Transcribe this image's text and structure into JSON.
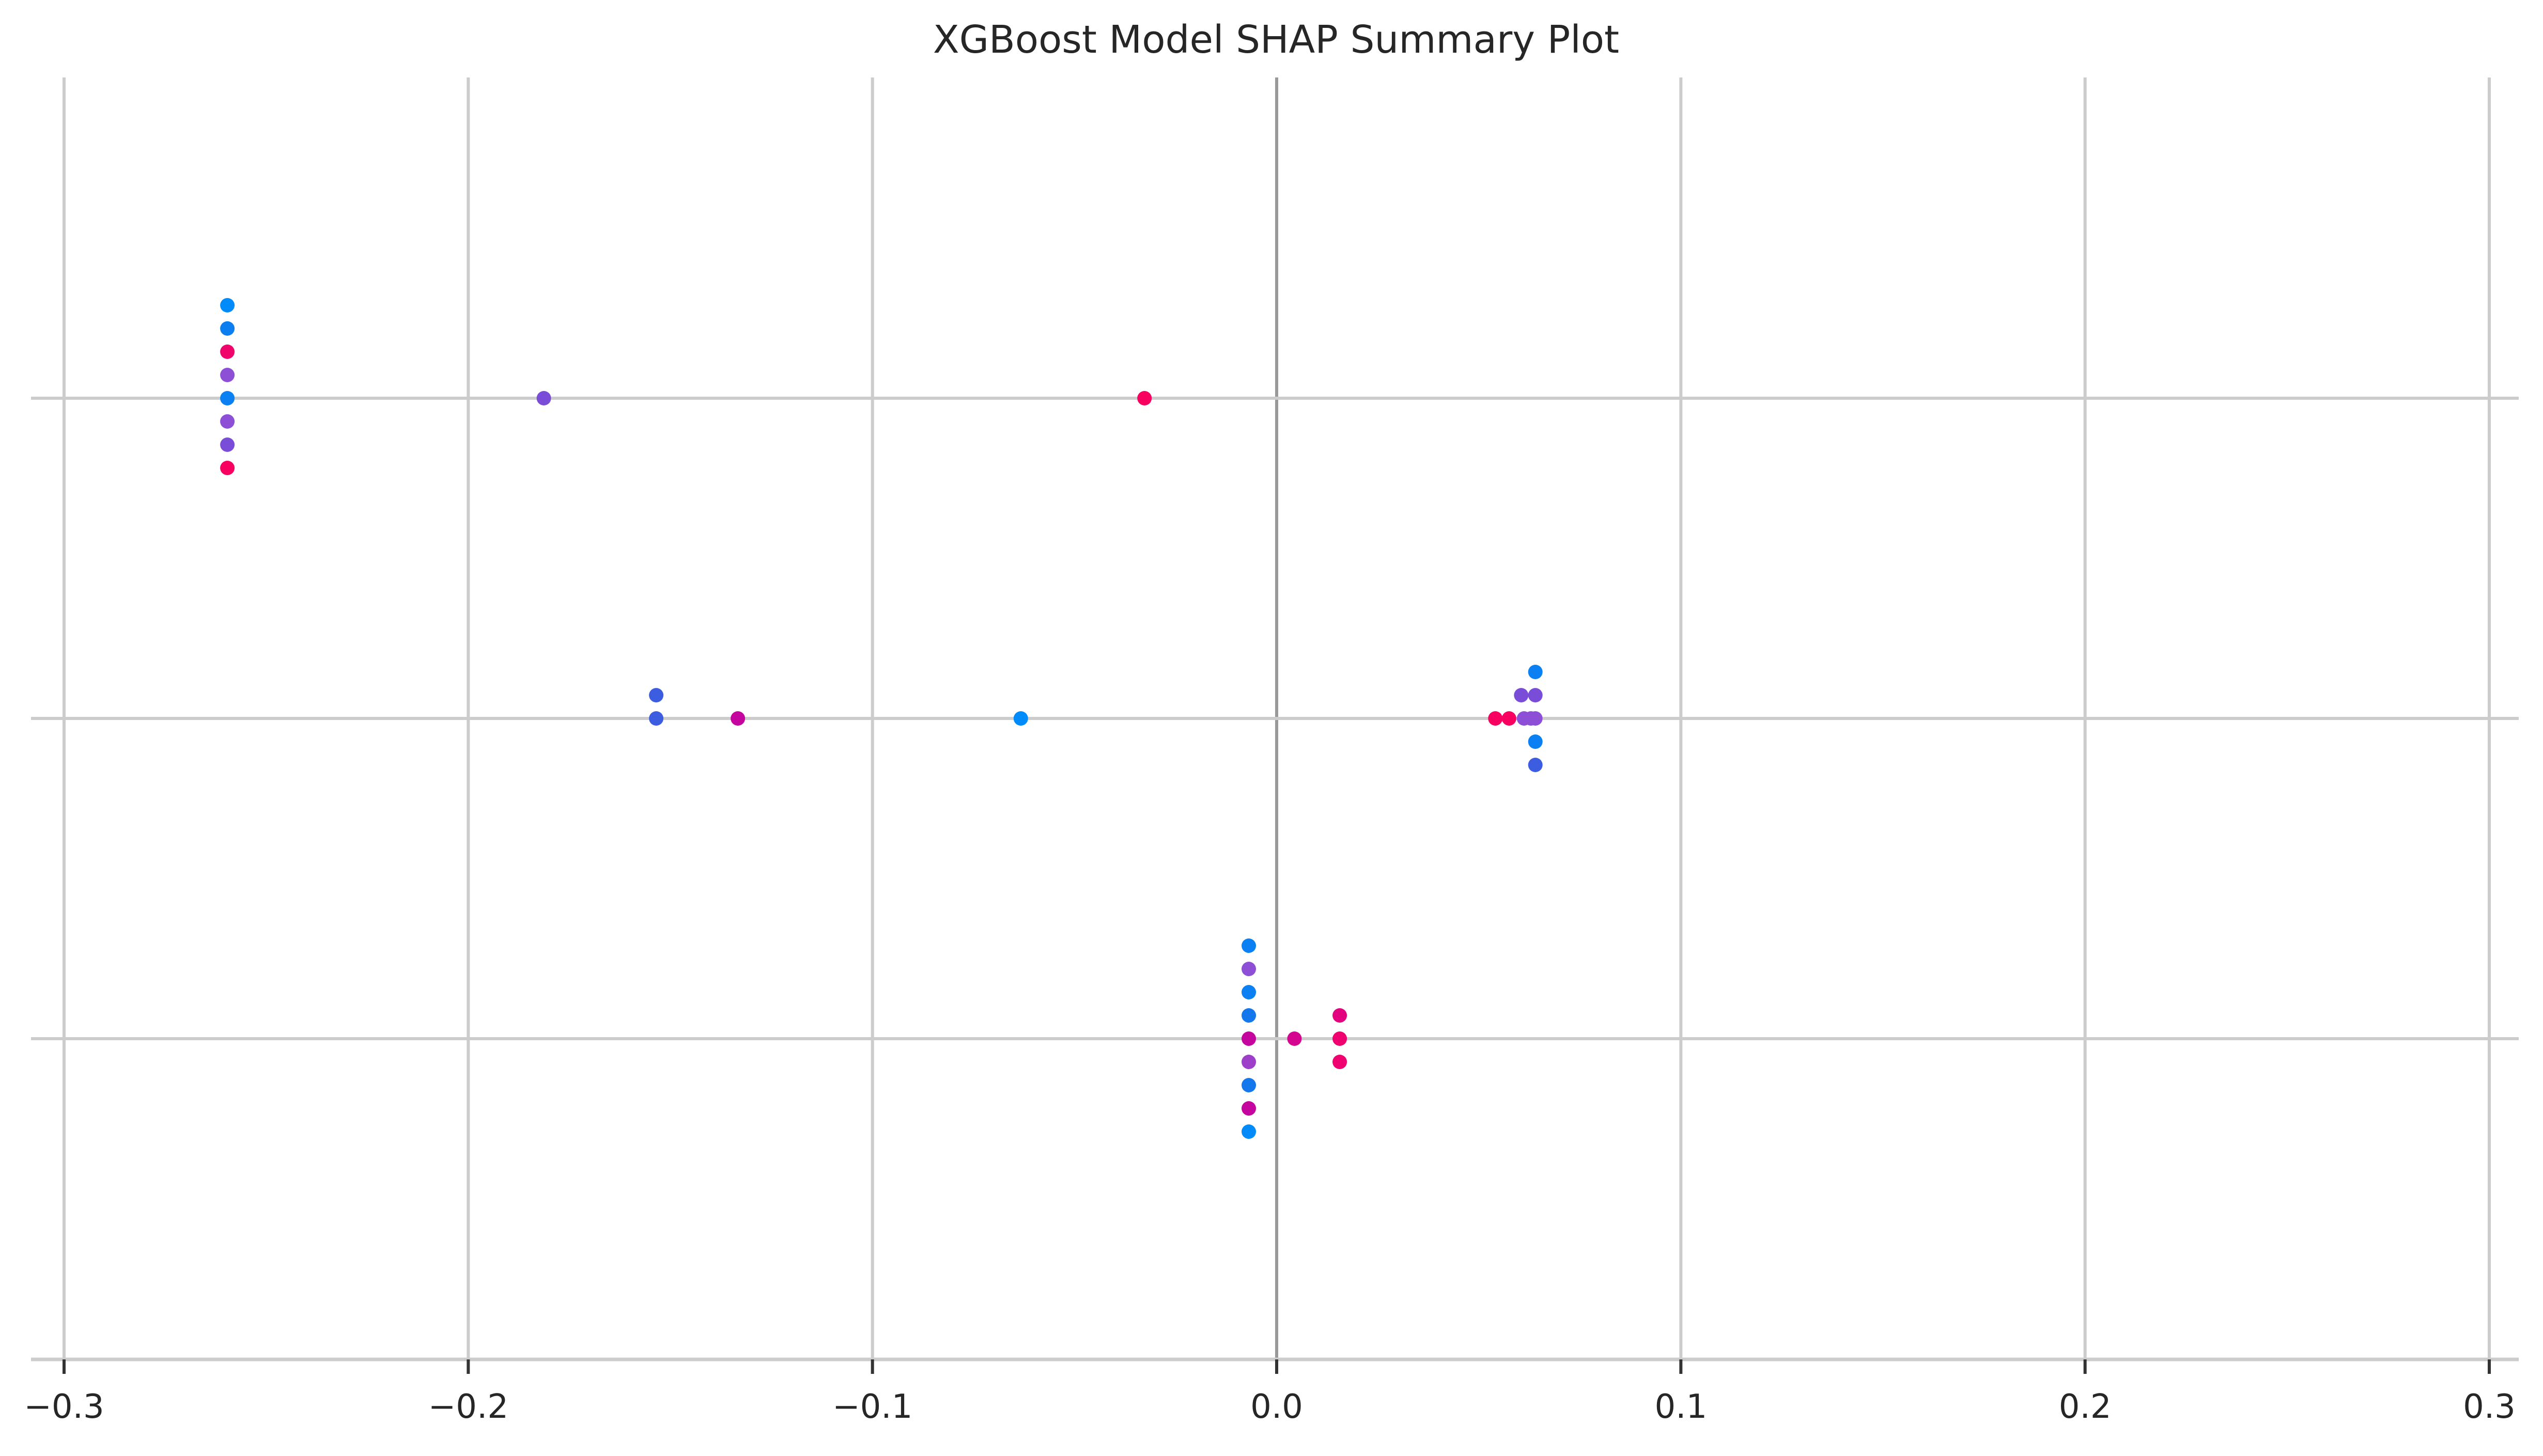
{
  "chart_data": {
    "type": "scatter",
    "title": "XGBoost Model SHAP Summary Plot",
    "xlabel": "",
    "ylabel": "",
    "xlim": [
      -0.3,
      0.3
    ],
    "xticks": [
      -0.3,
      -0.2,
      -0.1,
      0.0,
      0.1,
      0.2,
      0.3
    ],
    "xtick_labels": [
      "−0.3",
      "−0.2",
      "−0.1",
      "0.0",
      "0.1",
      "0.2",
      "0.3"
    ],
    "rows": 3,
    "grid": true,
    "colors": {
      "low": "#008bfb",
      "high": "#ff0052"
    },
    "points": [
      {
        "row": 0,
        "x": -0.2596,
        "offset": 4,
        "color": "#008bfb"
      },
      {
        "row": 0,
        "x": -0.2596,
        "offset": 3,
        "color": "#0c7ef0"
      },
      {
        "row": 0,
        "x": -0.2596,
        "offset": 2,
        "color": "#f0046c"
      },
      {
        "row": 0,
        "x": -0.2596,
        "offset": 1,
        "color": "#8d4fd6"
      },
      {
        "row": 0,
        "x": -0.2596,
        "offset": 0,
        "color": "#0a80f2"
      },
      {
        "row": 0,
        "x": -0.2596,
        "offset": -1,
        "color": "#8d4fd6"
      },
      {
        "row": 0,
        "x": -0.2596,
        "offset": -2,
        "color": "#7a4dd8"
      },
      {
        "row": 0,
        "x": -0.2596,
        "offset": -3,
        "color": "#f70060"
      },
      {
        "row": 0,
        "x": -0.1813,
        "offset": 0,
        "color": "#7a4dd8"
      },
      {
        "row": 0,
        "x": -0.0327,
        "offset": 0,
        "color": "#f70060"
      },
      {
        "row": 1,
        "x": -0.1535,
        "offset": 1,
        "color": "#3d5de0"
      },
      {
        "row": 1,
        "x": -0.1535,
        "offset": 0,
        "color": "#3d5de0"
      },
      {
        "row": 1,
        "x": -0.1333,
        "offset": 0,
        "color": "#c4069f"
      },
      {
        "row": 1,
        "x": -0.0633,
        "offset": 0,
        "color": "#008bfb"
      },
      {
        "row": 1,
        "x": 0.064,
        "offset": 2,
        "color": "#0a80f2"
      },
      {
        "row": 1,
        "x": 0.0605,
        "offset": 1,
        "color": "#7a4dd8"
      },
      {
        "row": 1,
        "x": 0.064,
        "offset": 1,
        "color": "#7a4dd8"
      },
      {
        "row": 1,
        "x": 0.0541,
        "offset": 0,
        "color": "#f70060"
      },
      {
        "row": 1,
        "x": 0.0575,
        "offset": 0,
        "color": "#f70060"
      },
      {
        "row": 1,
        "x": 0.0612,
        "offset": 0,
        "color": "#8d4fd6"
      },
      {
        "row": 1,
        "x": 0.0629,
        "offset": 0,
        "color": "#8d4fd6"
      },
      {
        "row": 1,
        "x": 0.064,
        "offset": 0,
        "color": "#8d4fd6"
      },
      {
        "row": 1,
        "x": 0.064,
        "offset": -1,
        "color": "#0a80f2"
      },
      {
        "row": 1,
        "x": 0.064,
        "offset": -2,
        "color": "#3d5de0"
      },
      {
        "row": 2,
        "x": -0.0069,
        "offset": 4,
        "color": "#0a80f2"
      },
      {
        "row": 2,
        "x": -0.0069,
        "offset": 3,
        "color": "#8d4fd6"
      },
      {
        "row": 2,
        "x": -0.0069,
        "offset": 2,
        "color": "#0a80f2"
      },
      {
        "row": 2,
        "x": -0.0069,
        "offset": 1,
        "color": "#1477ec"
      },
      {
        "row": 2,
        "x": -0.0069,
        "offset": 0,
        "color": "#c4069f"
      },
      {
        "row": 2,
        "x": -0.0069,
        "offset": -1,
        "color": "#9d3fc9"
      },
      {
        "row": 2,
        "x": -0.0069,
        "offset": -2,
        "color": "#1477ec"
      },
      {
        "row": 2,
        "x": -0.0069,
        "offset": -3,
        "color": "#c4069f"
      },
      {
        "row": 2,
        "x": -0.0069,
        "offset": -4,
        "color": "#008bfb"
      },
      {
        "row": 2,
        "x": 0.0044,
        "offset": 0,
        "color": "#d4058e"
      },
      {
        "row": 2,
        "x": 0.0156,
        "offset": 1,
        "color": "#e4037e"
      },
      {
        "row": 2,
        "x": 0.0156,
        "offset": 0,
        "color": "#ef0270"
      },
      {
        "row": 2,
        "x": 0.0156,
        "offset": -1,
        "color": "#ef0270"
      }
    ]
  }
}
